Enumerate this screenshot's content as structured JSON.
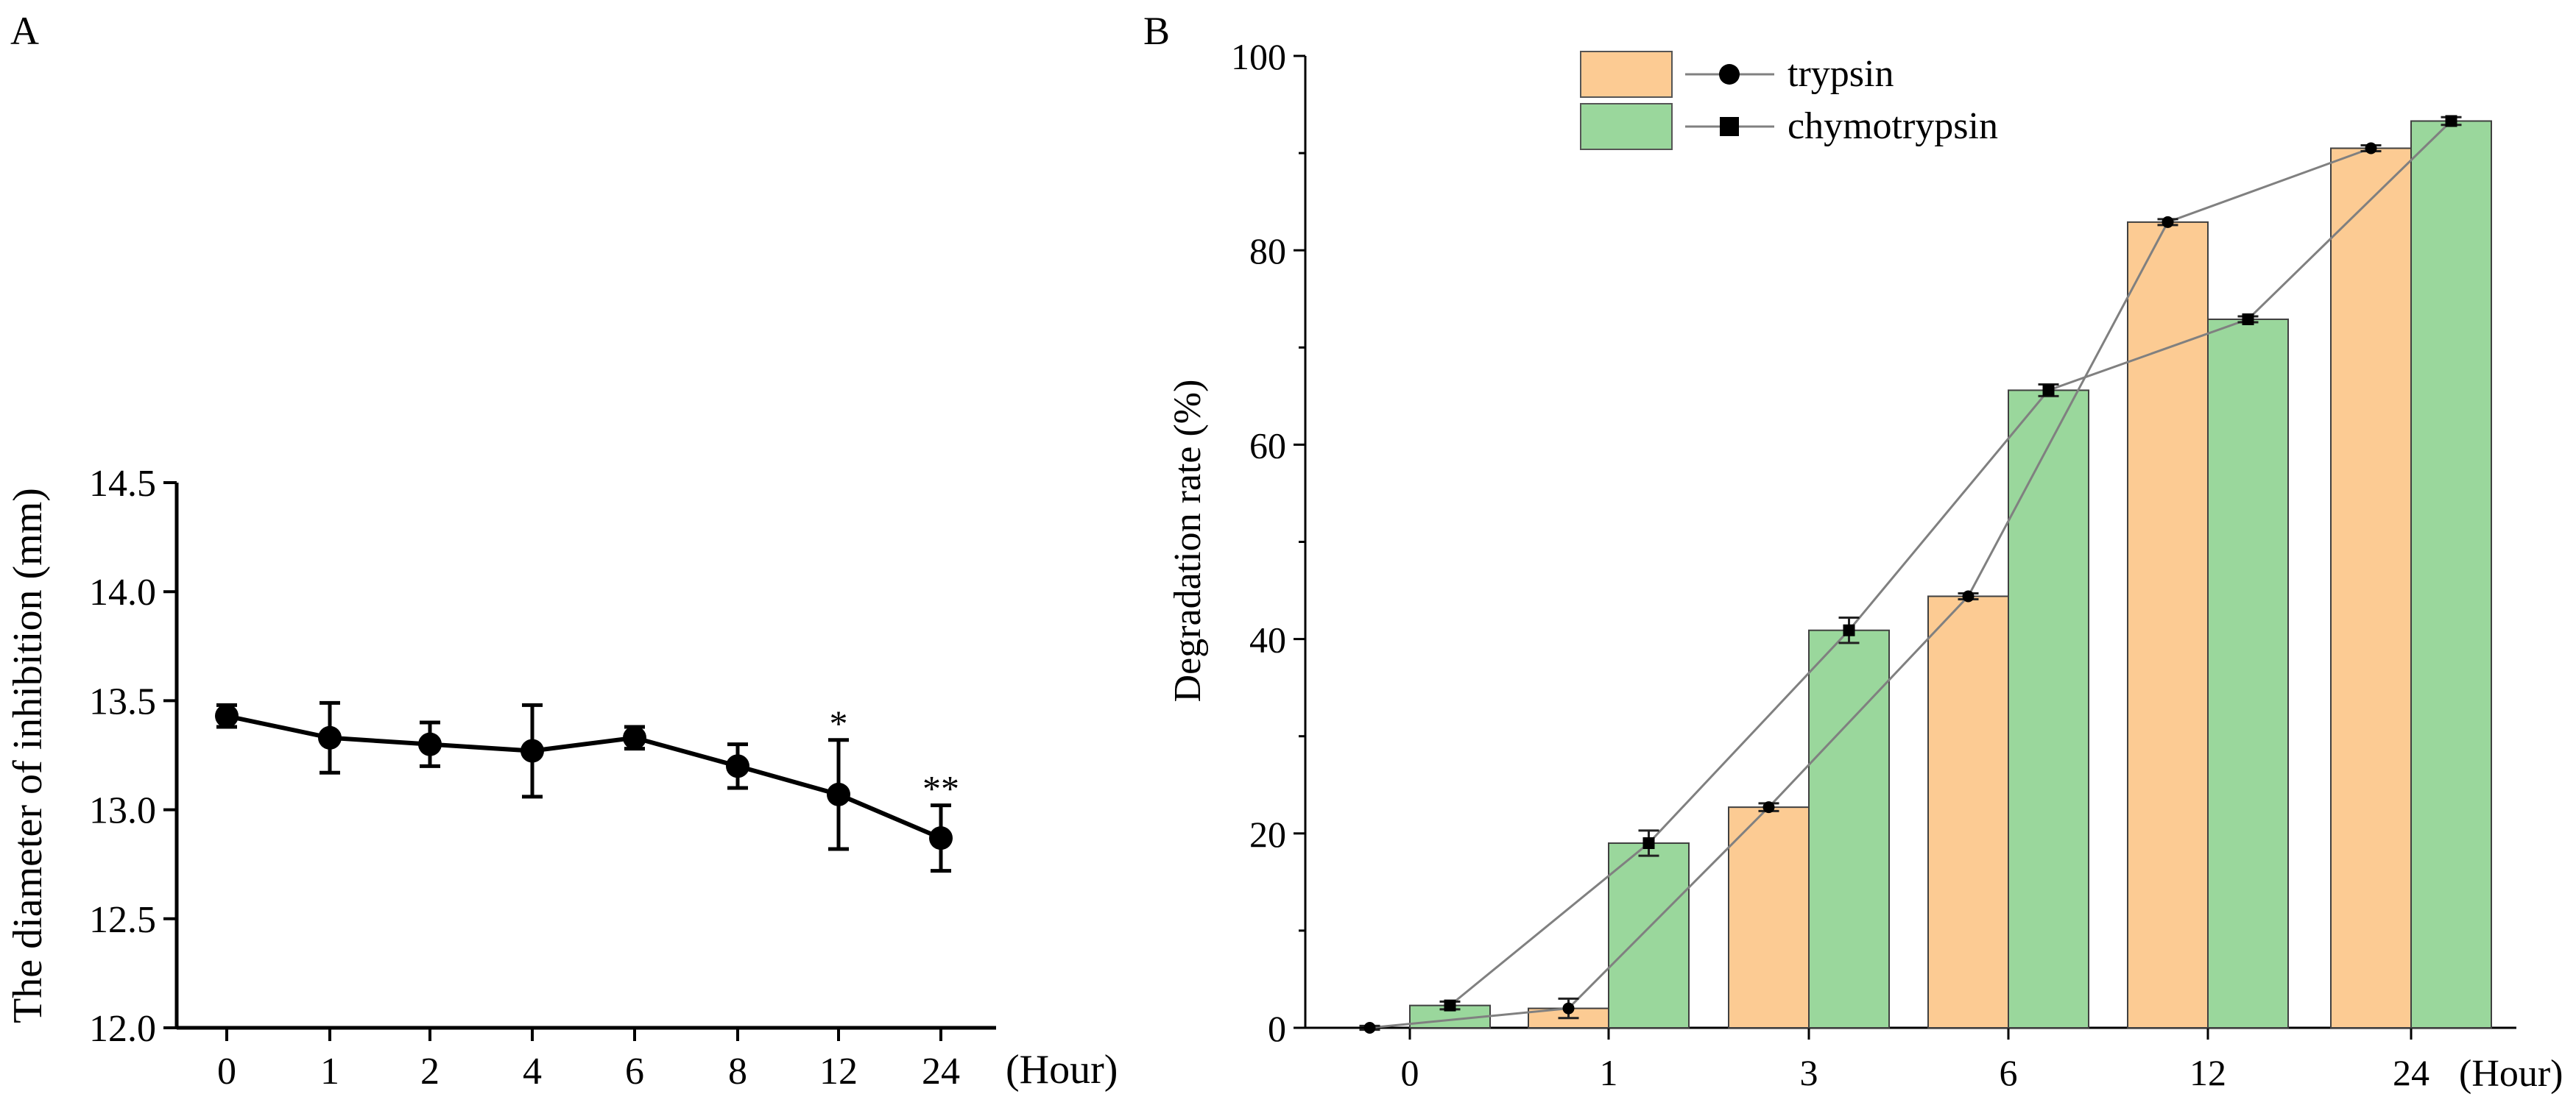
{
  "chart_data": [
    {
      "panel_label": "A",
      "type": "line",
      "categories": [
        "0",
        "1",
        "2",
        "4",
        "6",
        "8",
        "12",
        "24"
      ],
      "values": [
        13.43,
        13.33,
        13.3,
        13.27,
        13.33,
        13.2,
        13.07,
        12.87
      ],
      "errors": [
        0.05,
        0.16,
        0.1,
        0.21,
        0.05,
        0.1,
        0.25,
        0.15
      ],
      "significance": [
        "",
        "",
        "",
        "",
        "",
        "",
        "*",
        "**"
      ],
      "ylabel": "The diameter of inhibition (mm)",
      "xunit": "(Hour)",
      "ylim": [
        12.0,
        14.5
      ],
      "yticks": [
        "12.0",
        "12.5",
        "13.0",
        "13.5",
        "14.0",
        "14.5"
      ],
      "grid": false
    },
    {
      "panel_label": "B",
      "type": "bar",
      "categories": [
        "0",
        "1",
        "3",
        "6",
        "12",
        "24"
      ],
      "xunit": "(Hour)",
      "ylabel": "Degradation rate (%)",
      "ylim": [
        0,
        100
      ],
      "yticks": [
        "0",
        "20",
        "40",
        "60",
        "80",
        "100"
      ],
      "legend_position": "top-left",
      "grid": false,
      "series": [
        {
          "name": "trypsin",
          "marker": "circle",
          "color": "#FCCB93",
          "values": [
            0.0,
            2.0,
            22.7,
            44.4,
            82.9,
            90.5
          ],
          "errors": [
            0.2,
            1.0,
            0.4,
            0.3,
            0.3,
            0.3
          ]
        },
        {
          "name": "chymotrypsin",
          "marker": "square",
          "color": "#9AD79C",
          "values": [
            2.3,
            19.0,
            40.9,
            65.6,
            72.9,
            93.3
          ],
          "errors": [
            0.4,
            1.3,
            1.3,
            0.6,
            0.3,
            0.4
          ]
        }
      ]
    }
  ]
}
